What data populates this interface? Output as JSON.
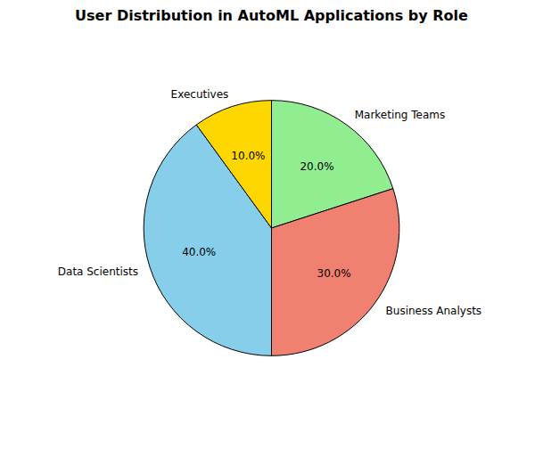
{
  "chart_data": {
    "type": "pie",
    "title": "User Distribution in AutoML Applications by Role",
    "categories": [
      "Marketing Teams",
      "Business Analysts",
      "Data Scientists",
      "Executives"
    ],
    "values": [
      20.0,
      30.0,
      40.0,
      10.0
    ],
    "value_labels": [
      "20.0%",
      "30.0%",
      "40.0%",
      "10.0%"
    ],
    "colors": [
      "#90EE90",
      "#F08070",
      "#87CEEB",
      "#FFD700"
    ],
    "data_labels": true
  }
}
